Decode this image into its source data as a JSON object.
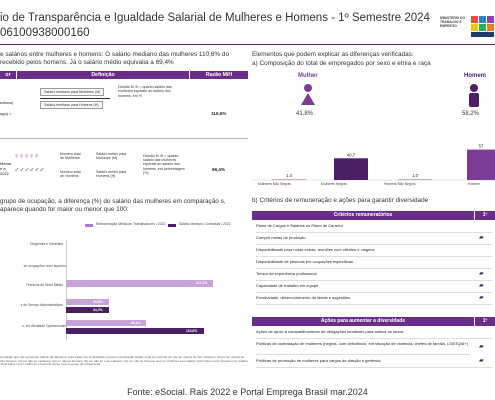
{
  "header": {
    "title": "io de Transparência e Igualdade Salarial de Mulheres e Homens - 1º Semestre 2024",
    "subtitle": "06100938000160",
    "ministry_logo": "MINISTÉRIO DO TRABALHO E EMPREGO"
  },
  "left": {
    "intro": "e salários entre mulheres e homens: O salário mediano das mulheres 110,6% do recebido pelos homens. Já o salário médio equivalia a 69,4%",
    "table": {
      "col1": "or",
      "col2": "Definição",
      "col3": "Razão M/H",
      "row1": {
        "label": "ediano)",
        "sub": "ago) =",
        "line_women": "Salário mediano para Mulheres (M)",
        "line_men": "Salário mediano para Homens (H)",
        "explain": "Divisão M /H = quanto salário das mulheres equivale ao salário dos homens, em %",
        "value": "110,6%"
      },
      "row2": {
        "label": "Média",
        "sub1": "e a",
        "sub2": "2022",
        "num_women": "Número total de Mulheres",
        "num_men": "Número total de Homens",
        "sal_women": "Salário médio para Mulheres (M)",
        "sal_men": "Salário médio para Homens (H)",
        "explain": "Divisão M /H = quanto salário das mulheres equivale ao salário dos homens, em percentagem (%)",
        "value": "69,4%"
      }
    },
    "group_text": "grupo de ocupação, a diferença (%) do salário das mulheres em comparação s, aparece quando for maior ou menor que 100:",
    "legend": {
      "a": "Remuneração Média de Trabalhadores • 2022",
      "b": "Salário Mediano Contratual • 2022"
    },
    "occupations": [
      {
        "label": "Dirigentes e Gerentes",
        "a": null,
        "b": null
      },
      {
        "label": "en ocupações nível superior",
        "a": null,
        "b": null
      },
      {
        "label": "Técnicos de Nível Médio",
        "a": 117.2,
        "b": null
      },
      {
        "label": "s de Serviço Administrativos",
        "a": 34.8,
        "b": 34.2
      },
      {
        "label": "s, em Atividade Operacionais",
        "a": 80.1,
        "b": 110.6
      }
    ],
    "value_labels": {
      "tec": "117,2%",
      "adm_a": "34,8%",
      "adm_b": "34,2%",
      "op_a": "80,1%",
      "op_b": "110,6%"
    },
    "footnote": "ocupação que não apresente cálculo da diferença, para salário de contratação ou para remuneração média, pode ter ocorrido um dos ter menos de três mulheres; (2) por ter menos de três homens; (3) por não ter mulheres; (4) por não ter homens; (5) por não ter s as mulheres; (6) por não ter homens e/ou ter mulheres com salário muito baixo ou ter homens com salário muito baixo ou ter mulheres e homens nesse mesmo grupo de ocupacional"
  },
  "right": {
    "intro": "Elementos que podem explicar as diferenças verificadas:",
    "a_title": "a) Composição do total de empregados por sexo e etnia e raça",
    "women_label": "Mulher",
    "men_label": "Homem",
    "women_pct": "41,8%",
    "men_pct": "58,2%",
    "chart_data": {
      "type": "bar",
      "categories": [
        "Mulheres Não Negras",
        "Mulheres Negras",
        "Homens Não Negros",
        "Homem"
      ],
      "values": [
        1.0,
        40.7,
        1.0,
        57.0
      ],
      "value_labels": [
        "1,0",
        "40,7",
        "1,0",
        "57"
      ]
    },
    "b_title": "b) Critérios de remuneração e ações para garantir diversidade",
    "criteria_header": "Critérios remuneratórios",
    "criteria_col": "1º",
    "criteria": [
      "Plano de Cargos e Salários ou Plano de Carreira",
      "Cumprir metas de produção",
      "Disponibilidade para horas extras, reuniões com clientes e viagens",
      "Disponibilidade de pessoas em ocupações específicas",
      "Tempo de experiência profissional",
      "Capacidade de trabalho em equipe",
      "Proatividade, desenvolvimento de ideias e sugestões"
    ],
    "actions_header": "Ações para aumentar a diversidade",
    "actions": [
      "Ações de apoio a compartilhamento de obrigações familiares para ambos os sexos",
      "Políticas de contratação de mulheres (negras, com deficiência, em situação de violência, chefes de família, LGBTQIA+)",
      "Políticas de promoção de mulheres para cargos de direção e gerência"
    ]
  },
  "footer": "Fonte: eSocial. Rais 2022 e Portal Emprega Brasil mar.2024"
}
